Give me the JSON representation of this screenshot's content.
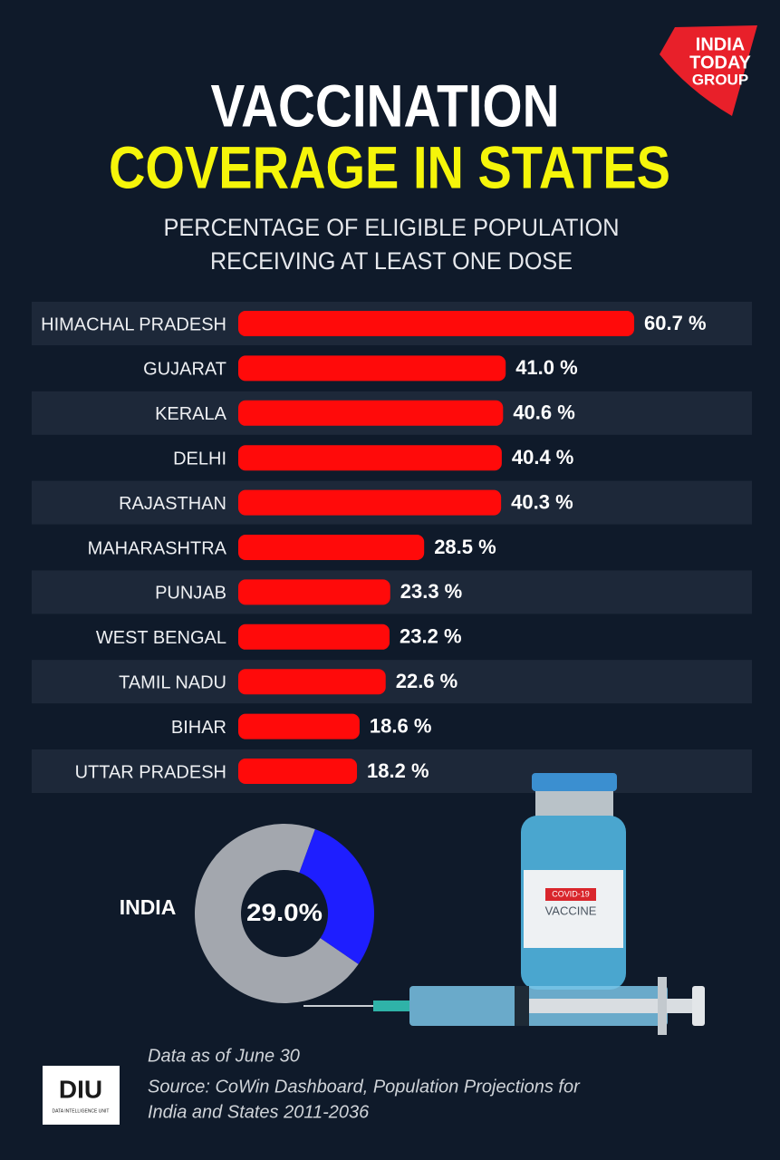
{
  "logo": [
    "INDIA",
    "TODAY",
    "GROUP"
  ],
  "chart_data": [
    {
      "type": "bar",
      "title": [
        "VACCINATION",
        "COVERAGE IN STATES"
      ],
      "subtitle": [
        "PERCENTAGE OF ELIGIBLE POPULATION",
        "RECEIVING AT LEAST ONE DOSE"
      ],
      "categories": [
        "HIMACHAL PRADESH",
        "GUJARAT",
        "KERALA",
        "DELHI",
        "RAJASTHAN",
        "MAHARASHTRA",
        "PUNJAB",
        "WEST BENGAL",
        "TAMIL NADU",
        "BIHAR",
        "UTTAR PRADESH"
      ],
      "values": [
        60.7,
        41.0,
        40.6,
        40.4,
        40.3,
        28.5,
        23.3,
        23.2,
        22.6,
        18.6,
        18.2
      ],
      "value_labels": [
        "60.7 %",
        "41.0 %",
        "40.6 %",
        "40.4 %",
        "40.3 %",
        "28.5 %",
        "23.3 %",
        "23.2 %",
        "22.6 %",
        "18.6 %",
        "18.2 %"
      ],
      "color": "#ff0a0a"
    },
    {
      "type": "pie",
      "label": "INDIA",
      "values": [
        29.0
      ],
      "value_labels": [
        "29.0%"
      ],
      "colors": [
        "#1e1eff",
        "#a3a7ae"
      ]
    }
  ],
  "vial": {
    "badge": "COVID-19",
    "text": "VACCINE"
  },
  "footer": {
    "note": "Data as of June 30",
    "source": [
      "Source: CoWin Dashboard, Population Projections for",
      "India and States 2011-2036"
    ]
  },
  "diu": {
    "name": "DIU",
    "tagline": "DATA INTELLIGENCE UNIT"
  }
}
